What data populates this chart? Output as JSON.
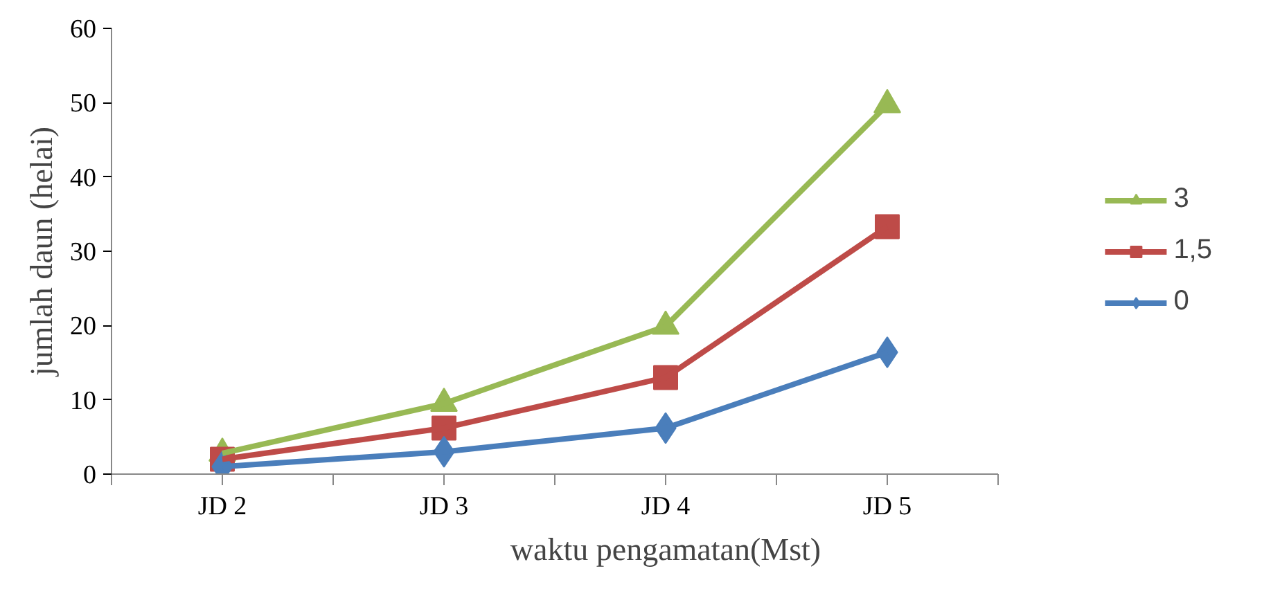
{
  "chart_data": {
    "type": "line",
    "xlabel": "waktu pengamatan(Mst)",
    "ylabel": "jumlah daun (helai)",
    "categories": [
      "JD 2",
      "JD 3",
      "JD 4",
      "JD 5"
    ],
    "ylim": [
      0,
      60
    ],
    "yticks": [
      0,
      10,
      20,
      30,
      40,
      50,
      60
    ],
    "grid": false,
    "legend": "right",
    "series": [
      {
        "name": "0",
        "color": "#4a7ebb",
        "marker": "diamond",
        "values": [
          1,
          3,
          6.2,
          16.4
        ]
      },
      {
        "name": "1,5",
        "color": "#be4b48",
        "marker": "square",
        "values": [
          2,
          6.2,
          13,
          33.3
        ]
      },
      {
        "name": "3",
        "color": "#98b954",
        "marker": "triangle",
        "values": [
          2.8,
          9.5,
          19.9,
          49.7
        ]
      }
    ]
  }
}
